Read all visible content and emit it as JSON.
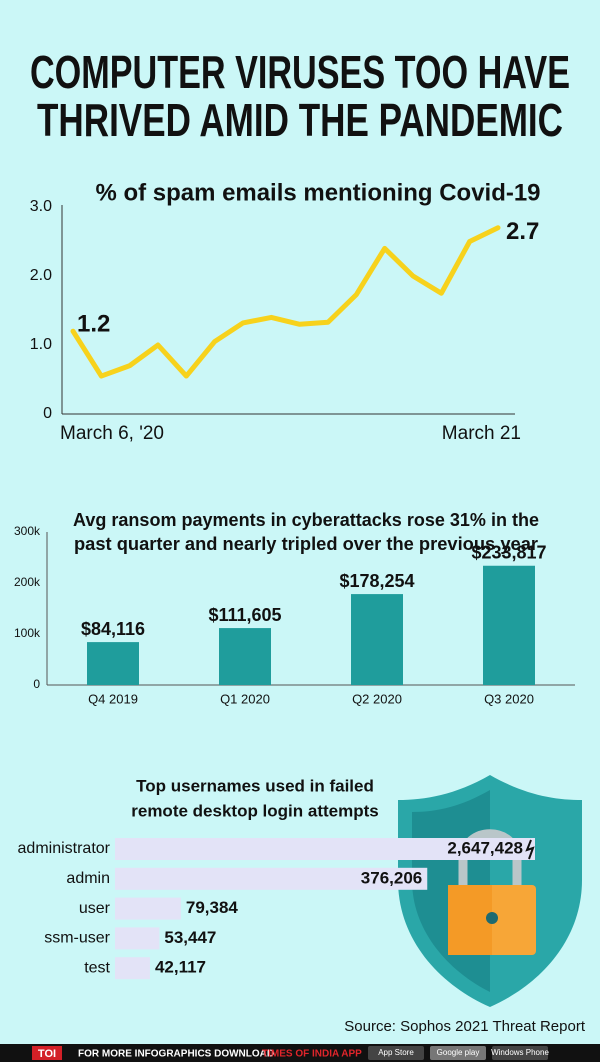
{
  "title": [
    "COMPUTER VIRUSES TOO HAVE",
    "THRIVED AMID THE PANDEMIC"
  ],
  "chart_data": [
    {
      "type": "line",
      "title": [
        "% of spam emails mentioning Covid-19"
      ],
      "categories": [
        "March 6, '20",
        null,
        null,
        null,
        null,
        null,
        null,
        null,
        null,
        null,
        null,
        null,
        null,
        null,
        null,
        "March 21"
      ],
      "values": [
        1.2,
        0.55,
        0.7,
        1.0,
        0.55,
        1.05,
        1.32,
        1.4,
        1.3,
        1.33,
        1.73,
        2.4,
        2.0,
        1.75,
        2.5,
        2.7
      ],
      "color": "#f7d21c",
      "ylim": [
        0,
        3
      ],
      "yticks": [
        0,
        {
          "value": 1,
          "label": "1.0"
        },
        {
          "value": 2,
          "label": "2.0"
        },
        {
          "value": 3,
          "label": "3.0"
        }
      ]
    },
    {
      "type": "bar",
      "title": [
        "Avg ransom payments in cyberattacks rose 31% in the",
        "past quarter and nearly tripled over the previous year"
      ],
      "categories": [
        "Q4 2019",
        "Q1 2020",
        "Q2 2020",
        "Q3 2020"
      ],
      "values": [
        84116,
        111605,
        178254,
        233817
      ],
      "value_labels": [
        "$84,116",
        "$111,605",
        "$178,254",
        "$233,817"
      ],
      "color": "#1f9d9c",
      "ylim": [
        0,
        300000
      ],
      "yticks": [
        0,
        {
          "value": 100000,
          "label": "100k"
        },
        {
          "value": 200000,
          "label": "200k"
        },
        {
          "value": 300000,
          "label": "300k"
        }
      ]
    },
    {
      "type": "hbar",
      "title": [
        "Top usernames used in failed",
        "remote desktop login attempts"
      ],
      "categories": [
        "administrator",
        "admin",
        "user",
        "ssm-user",
        "test"
      ],
      "values": [
        2647428,
        376206,
        79384,
        53447,
        42117
      ],
      "value_labels": [
        "2,647,428",
        "376,206",
        "79,384",
        "53,447",
        "42,117"
      ],
      "color": "#e3e3f7"
    }
  ],
  "source": "Source: Sophos 2021 Threat Report",
  "footer": {
    "logo": "TOI",
    "text": "FOR MORE INFOGRAPHICS DOWNLOAD",
    "app": "TIMES OF INDIA APP",
    "badges": [
      "App Store",
      "Google play",
      "Windows Phone"
    ]
  }
}
